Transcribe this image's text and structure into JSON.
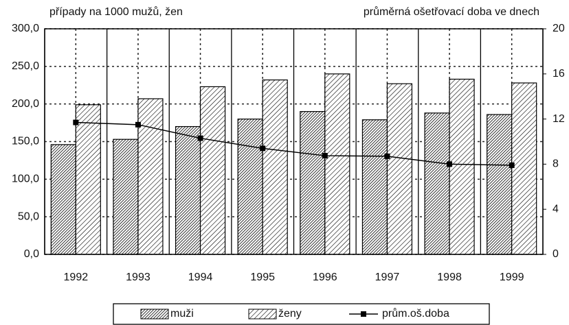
{
  "chart_data": {
    "type": "bar",
    "y_label": "případy na 1000 mužů, žen",
    "y2_label": "průměrná ošetřovací doba ve dnech",
    "categories": [
      "1992",
      "1993",
      "1994",
      "1995",
      "1996",
      "1997",
      "1998",
      "1999"
    ],
    "series": [
      {
        "name": "muži",
        "color": "#000000",
        "type": "bar",
        "values": [
          146,
          153,
          170,
          180,
          190,
          179,
          188,
          186
        ]
      },
      {
        "name": "ženy",
        "color": "#000000",
        "type": "bar",
        "values": [
          199,
          207,
          223,
          232,
          240,
          227,
          233,
          228
        ]
      },
      {
        "name": "prům.oš.doba",
        "color": "#000000",
        "type": "line",
        "axis": "y2",
        "values": [
          11.7,
          11.5,
          10.3,
          9.4,
          8.75,
          8.7,
          8.0,
          7.9
        ]
      }
    ],
    "ylim": [
      0,
      300
    ],
    "yticks": [
      {
        "value": 0,
        "label": "0,0"
      },
      {
        "value": 50,
        "label": "50,0"
      },
      {
        "value": 100,
        "label": "100,0"
      },
      {
        "value": 150,
        "label": "150,0"
      },
      {
        "value": 200,
        "label": "200,0"
      },
      {
        "value": 250,
        "label": "250,0"
      },
      {
        "value": 300,
        "label": "300,0"
      }
    ],
    "y2lim": [
      0,
      20
    ],
    "y2ticks": [
      0,
      4,
      8,
      12,
      16,
      20
    ],
    "grid": true,
    "legend": "bottom"
  }
}
